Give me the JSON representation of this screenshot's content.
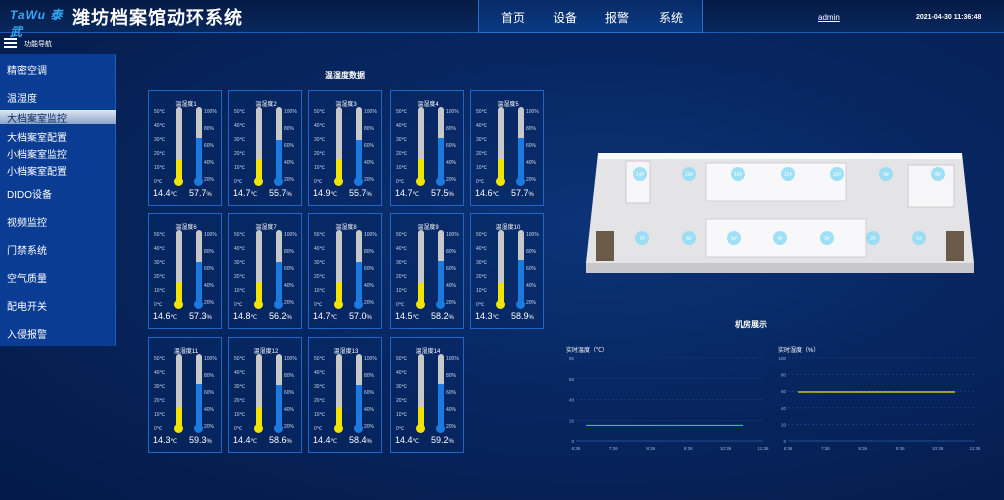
{
  "header": {
    "logo": "TaWu 泰武",
    "title": "潍坊档案馆动环系统",
    "nav": [
      "首页",
      "设备",
      "报警",
      "系统"
    ],
    "user": "admin",
    "datetime": "2021-04-30 11:36:48"
  },
  "menu": {
    "header_label": "功能导航",
    "items": [
      "精密空调",
      "温湿度",
      "大档案室监控",
      "大档案室配置",
      "小档案室监控",
      "小档案室配置",
      "DIDO设备",
      "视频监控",
      "门禁系统",
      "空气质量",
      "配电开关",
      "入侵报警"
    ]
  },
  "section_title": "温湿度数据",
  "ticks": {
    "temp": [
      "50℃",
      "40℃",
      "30℃",
      "20℃",
      "10℃",
      "0℃"
    ],
    "hum": [
      "100%",
      "80%",
      "60%",
      "40%",
      "20%"
    ]
  },
  "units": {
    "temp": "℃",
    "hum": "%"
  },
  "sensors": [
    {
      "name": "温湿度1",
      "temp": "14.4",
      "hum": "57.7"
    },
    {
      "name": "温湿度2",
      "temp": "14.7",
      "hum": "55.7"
    },
    {
      "name": "温湿度3",
      "temp": "14.9",
      "hum": "55.7"
    },
    {
      "name": "温湿度4",
      "temp": "14.7",
      "hum": "57.5"
    },
    {
      "name": "温湿度5",
      "temp": "14.6",
      "hum": "57.7"
    },
    {
      "name": "温湿度6",
      "temp": "14.6",
      "hum": "57.3"
    },
    {
      "name": "温湿度7",
      "temp": "14.8",
      "hum": "56.2"
    },
    {
      "name": "温湿度8",
      "temp": "14.7",
      "hum": "57.0"
    },
    {
      "name": "温湿度9",
      "temp": "14.5",
      "hum": "58.2"
    },
    {
      "name": "温湿度10",
      "temp": "14.3",
      "hum": "58.9"
    },
    {
      "name": "温湿度11",
      "temp": "14.3",
      "hum": "59.3"
    },
    {
      "name": "温湿度12",
      "temp": "14.4",
      "hum": "58.6"
    },
    {
      "name": "温湿度13",
      "temp": "14.4",
      "hum": "58.4"
    },
    {
      "name": "温湿度14",
      "temp": "14.4",
      "hum": "59.2"
    }
  ],
  "room": {
    "title": "机房展示",
    "top_labels": [
      "14#",
      "13#",
      "12#",
      "11#",
      "10#",
      "9#",
      "8#"
    ],
    "bottom_labels": [
      "7#",
      "6#",
      "5#",
      "4#",
      "3#",
      "2#",
      "1#"
    ]
  },
  "colors": {
    "temp_fill": "#f0e400",
    "hum_fill": "#1a7ae0",
    "accent": "#1e66c8"
  },
  "chart_data": [
    {
      "type": "line",
      "title": "实时温度（℃）",
      "x": [
        "6:36",
        "7:36",
        "8:36",
        "9:36",
        "10:36",
        "11:36"
      ],
      "y_ticks": [
        "0",
        "20",
        "40",
        "60",
        "80"
      ],
      "ylim": [
        0,
        80
      ],
      "series": [
        {
          "values": [
            15,
            15,
            15,
            15,
            15,
            15
          ],
          "color": "#22dd22"
        }
      ]
    },
    {
      "type": "line",
      "title": "实时湿度（%）",
      "x": [
        "6:36",
        "7:36",
        "8:36",
        "9:36",
        "10:36",
        "11:36"
      ],
      "y_ticks": [
        "0",
        "20",
        "40",
        "60",
        "80",
        "100"
      ],
      "ylim": [
        0,
        100
      ],
      "series": [
        {
          "values": [
            59,
            59,
            59,
            59,
            59,
            59
          ],
          "color": "#f0e400"
        }
      ]
    }
  ]
}
